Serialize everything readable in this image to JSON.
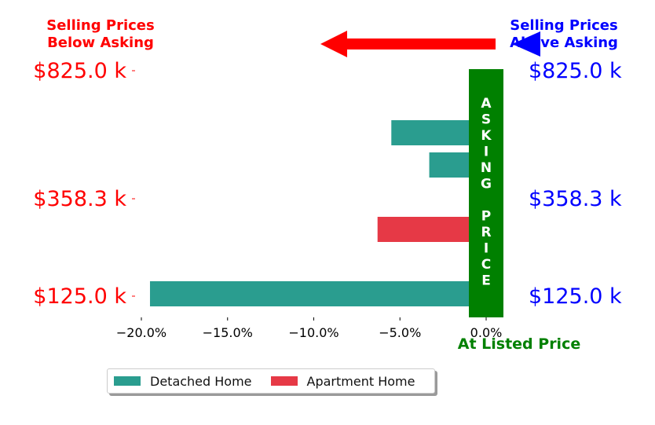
{
  "chart_data": {
    "type": "bar",
    "orientation": "horizontal",
    "xlim": [
      -0.215,
      0.0
    ],
    "x_ticks": [
      -0.2,
      -0.15,
      -0.1,
      -0.05,
      0.0
    ],
    "x_tick_labels": [
      "−20.0%",
      "−15.0%",
      "−10.0%",
      "−5.0%",
      "0.0%"
    ],
    "left_tick_labels": [
      "$825.0 k",
      "$358.3 k",
      "$125.0 k"
    ],
    "right_tick_labels": [
      "$825.0 k",
      "$358.3 k",
      "$125.0 k"
    ],
    "series": [
      {
        "name": "Detached Home",
        "color": "#2a9d8f"
      },
      {
        "name": "Apartment Home",
        "color": "#e63946"
      }
    ],
    "bars": [
      {
        "series": "Detached Home",
        "value": 0.006
      },
      {
        "series": "Detached Home",
        "value": -0.055
      },
      {
        "series": "Detached Home",
        "value": -0.033
      },
      {
        "series": "Detached Home",
        "value": 0.006
      },
      {
        "series": "Apartment Home",
        "value": -0.063
      },
      {
        "series": "Detached Home",
        "value": 0.006
      },
      {
        "series": "Detached Home",
        "value": -0.195
      }
    ],
    "annotations": {
      "below_asking": "Selling Prices\nBelow Asking",
      "above_asking": "Selling Prices\nAbove Asking",
      "asking_price_letters": [
        "A",
        "S",
        "K",
        "I",
        "N",
        "G",
        "",
        "P",
        "R",
        "I",
        "C",
        "E"
      ],
      "at_listed_price": "At Listed Price"
    },
    "colors": {
      "below": "#ff0000",
      "above": "#0000ff",
      "asking": "#008000"
    },
    "legend": {
      "position": "bottom-left"
    }
  }
}
